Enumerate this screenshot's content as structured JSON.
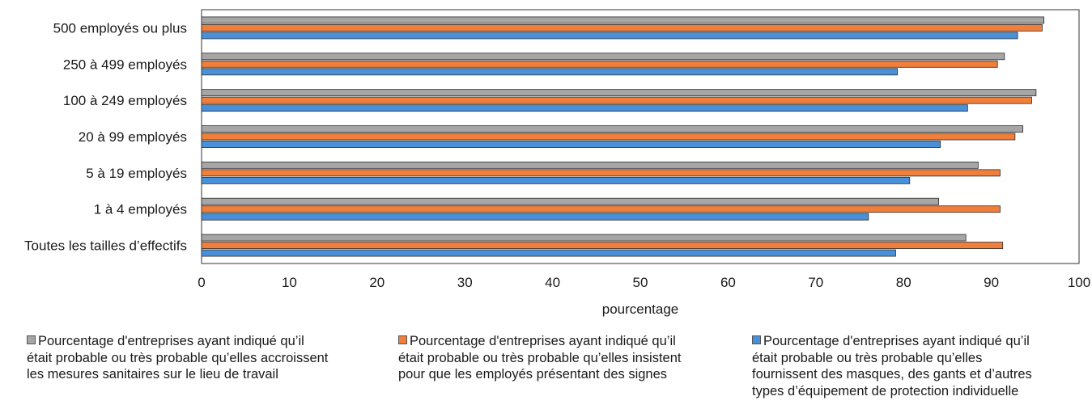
{
  "chart_data": {
    "type": "bar",
    "orientation": "horizontal",
    "categories": [
      "500 employés ou plus",
      "250 à 499 employés",
      "100 à 249 employés",
      "20 à 99 employés",
      "5 à 19 employés",
      "1 à 4 employés",
      "Toutes les tailles d’effectifs"
    ],
    "series": [
      {
        "name": "Pourcentage d'entreprises ayant indiqué qu’il était probable ou très probable qu’elles accroissent les mesures sanitaires sur le lieu de travail",
        "color": "#a6a6a6",
        "values": [
          96.0,
          91.5,
          95.1,
          93.6,
          88.5,
          84.0,
          87.1
        ]
      },
      {
        "name": "Pourcentage d'entreprises ayant indiqué qu’il était probable ou très probable qu’elles insistent pour que les employés présentant des signes",
        "color": "#f07f3c",
        "values": [
          95.8,
          90.7,
          94.6,
          92.7,
          91.0,
          91.0,
          91.3
        ]
      },
      {
        "name": "Pourcentage d'entreprises ayant indiqué qu’il était probable ou très probable qu’elles fournissent des masques, des gants et d’autres types d’équipement de protection individuelle",
        "color": "#4a90d9",
        "values": [
          93.0,
          79.3,
          87.3,
          84.2,
          80.7,
          76.0,
          79.1
        ]
      }
    ],
    "xlabel": "pourcentage",
    "ylabel": "",
    "xlim": [
      0,
      100
    ],
    "xticks": [
      "0",
      "10",
      "20",
      "30",
      "40",
      "50",
      "60",
      "70",
      "80",
      "90",
      "100"
    ],
    "legend": {
      "position": "bottom",
      "lines": [
        "Pourcentage d'entreprises ayant indiqué qu’il\nétait probable ou très probable qu’elles accroissent\nles mesures sanitaires sur le lieu de travail",
        "Pourcentage d'entreprises ayant indiqué qu’il\nétait probable ou très probable qu’elles insistent\npour que les employés présentant des signes",
        "Pourcentage d'entreprises ayant indiqué qu’il\nétait probable ou très probable qu’elles\nfournissent des masques, des gants et d’autres\ntypes d’équipement de protection individuelle"
      ]
    }
  }
}
